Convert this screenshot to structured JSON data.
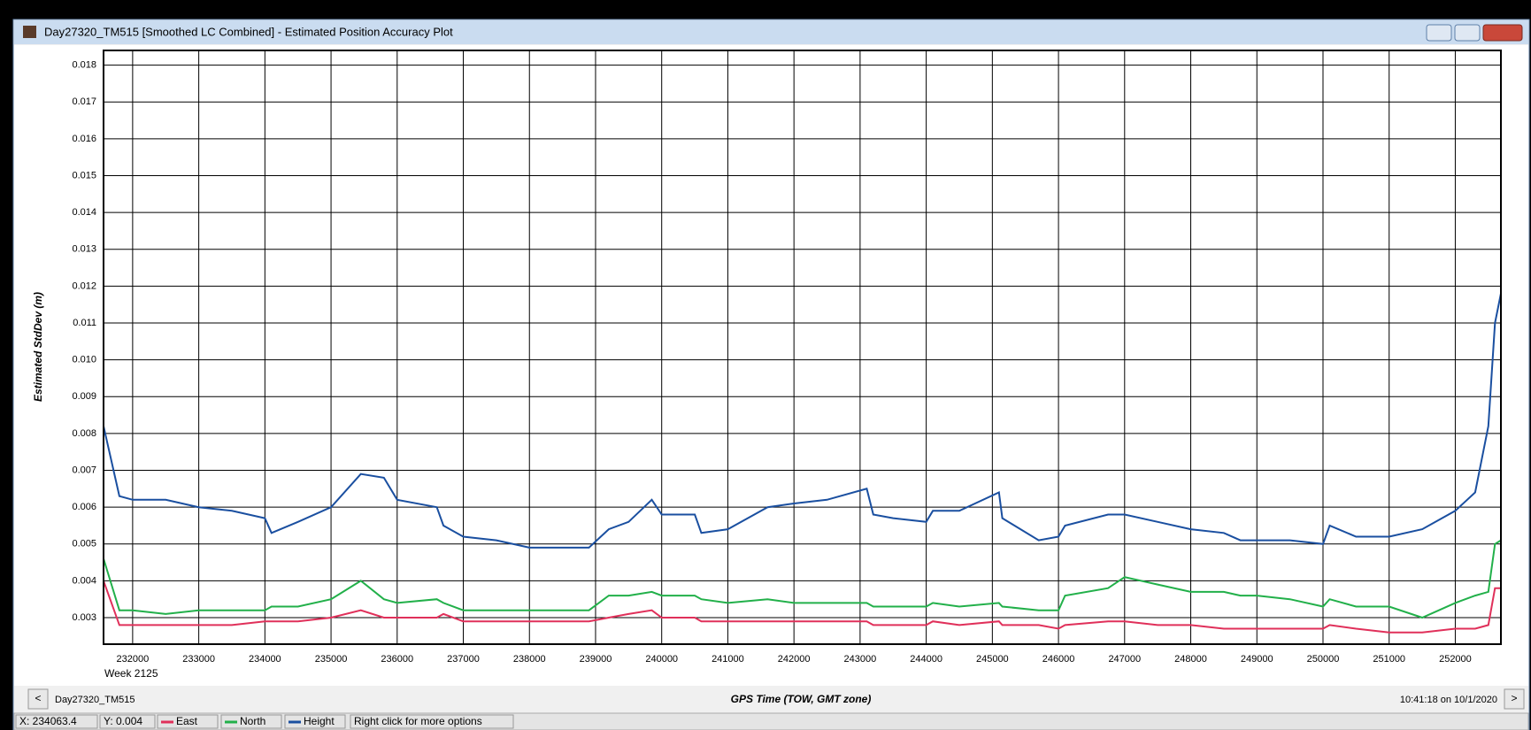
{
  "window": {
    "title": "Day27320_TM515 [Smoothed LC Combined] - Estimated Position Accuracy Plot"
  },
  "footer": {
    "left": "Day27320_TM515",
    "right": "10:41:18 on 10/1/2020",
    "prev": "<",
    "next": ">"
  },
  "status": {
    "x": "X: 234063.4",
    "y": "Y: 0.004",
    "hint": "Right click for more options"
  },
  "chart_data": {
    "type": "line",
    "xlabel": "GPS Time (TOW, GMT zone)",
    "ylabel": "Estimated StdDev (m)",
    "x_note": "Week 2125",
    "x": [
      231560,
      231800,
      232000,
      232500,
      233000,
      233500,
      234000,
      234100,
      234500,
      235000,
      235450,
      235800,
      236000,
      236600,
      236700,
      237000,
      237500,
      238000,
      238500,
      238900,
      239200,
      239500,
      239850,
      240000,
      240500,
      240600,
      241000,
      241600,
      242000,
      242500,
      243100,
      243200,
      243500,
      244000,
      244100,
      244500,
      245100,
      245150,
      245700,
      246000,
      246100,
      246750,
      247000,
      247500,
      248000,
      248500,
      248750,
      249000,
      249500,
      250000,
      250100,
      250500,
      251000,
      251500,
      252000,
      252300,
      252500,
      252600,
      252690
    ],
    "series": [
      {
        "name": "East",
        "color": "#e0305a",
        "values": [
          0.004,
          0.0028,
          0.0028,
          0.0028,
          0.0028,
          0.0028,
          0.0029,
          0.0029,
          0.0029,
          0.003,
          0.0032,
          0.003,
          0.003,
          0.003,
          0.0031,
          0.0029,
          0.0029,
          0.0029,
          0.0029,
          0.0029,
          0.003,
          0.0031,
          0.0032,
          0.003,
          0.003,
          0.0029,
          0.0029,
          0.0029,
          0.0029,
          0.0029,
          0.0029,
          0.0028,
          0.0028,
          0.0028,
          0.0029,
          0.0028,
          0.0029,
          0.0028,
          0.0028,
          0.0027,
          0.0028,
          0.0029,
          0.0029,
          0.0028,
          0.0028,
          0.0027,
          0.0027,
          0.0027,
          0.0027,
          0.0027,
          0.0028,
          0.0027,
          0.0026,
          0.0026,
          0.0027,
          0.0027,
          0.0028,
          0.0038,
          0.0038
        ]
      },
      {
        "name": "North",
        "color": "#22b04a",
        "values": [
          0.0046,
          0.0032,
          0.0032,
          0.0031,
          0.0032,
          0.0032,
          0.0032,
          0.0033,
          0.0033,
          0.0035,
          0.004,
          0.0035,
          0.0034,
          0.0035,
          0.0034,
          0.0032,
          0.0032,
          0.0032,
          0.0032,
          0.0032,
          0.0036,
          0.0036,
          0.0037,
          0.0036,
          0.0036,
          0.0035,
          0.0034,
          0.0035,
          0.0034,
          0.0034,
          0.0034,
          0.0033,
          0.0033,
          0.0033,
          0.0034,
          0.0033,
          0.0034,
          0.0033,
          0.0032,
          0.0032,
          0.0036,
          0.0038,
          0.0041,
          0.0039,
          0.0037,
          0.0037,
          0.0036,
          0.0036,
          0.0035,
          0.0033,
          0.0035,
          0.0033,
          0.0033,
          0.003,
          0.0034,
          0.0036,
          0.0037,
          0.005,
          0.0051
        ]
      },
      {
        "name": "Height",
        "color": "#1a4fa0",
        "values": [
          0.0082,
          0.0063,
          0.0062,
          0.0062,
          0.006,
          0.0059,
          0.0057,
          0.0053,
          0.0056,
          0.006,
          0.0069,
          0.0068,
          0.0062,
          0.006,
          0.0055,
          0.0052,
          0.0051,
          0.0049,
          0.0049,
          0.0049,
          0.0054,
          0.0056,
          0.0062,
          0.0058,
          0.0058,
          0.0053,
          0.0054,
          0.006,
          0.0061,
          0.0062,
          0.0065,
          0.0058,
          0.0057,
          0.0056,
          0.0059,
          0.0059,
          0.0064,
          0.0057,
          0.0051,
          0.0052,
          0.0055,
          0.0058,
          0.0058,
          0.0056,
          0.0054,
          0.0053,
          0.0051,
          0.0051,
          0.0051,
          0.005,
          0.0055,
          0.0052,
          0.0052,
          0.0054,
          0.0059,
          0.0064,
          0.0082,
          0.011,
          0.0118
        ]
      }
    ],
    "xlim": [
      231560,
      252690
    ],
    "xticks": [
      232000,
      233000,
      234000,
      235000,
      236000,
      237000,
      238000,
      239000,
      240000,
      241000,
      242000,
      243000,
      244000,
      245000,
      246000,
      247000,
      248000,
      249000,
      250000,
      251000,
      252000
    ],
    "ylim": [
      0.00228,
      0.0184
    ],
    "yticks": [
      0.003,
      0.004,
      0.005,
      0.006,
      0.007,
      0.008,
      0.009,
      {
        "value": 0.01,
        "label": "0.010"
      },
      0.011,
      0.012,
      0.013,
      0.014,
      0.015,
      0.016,
      0.017,
      0.018
    ],
    "grid": true
  }
}
